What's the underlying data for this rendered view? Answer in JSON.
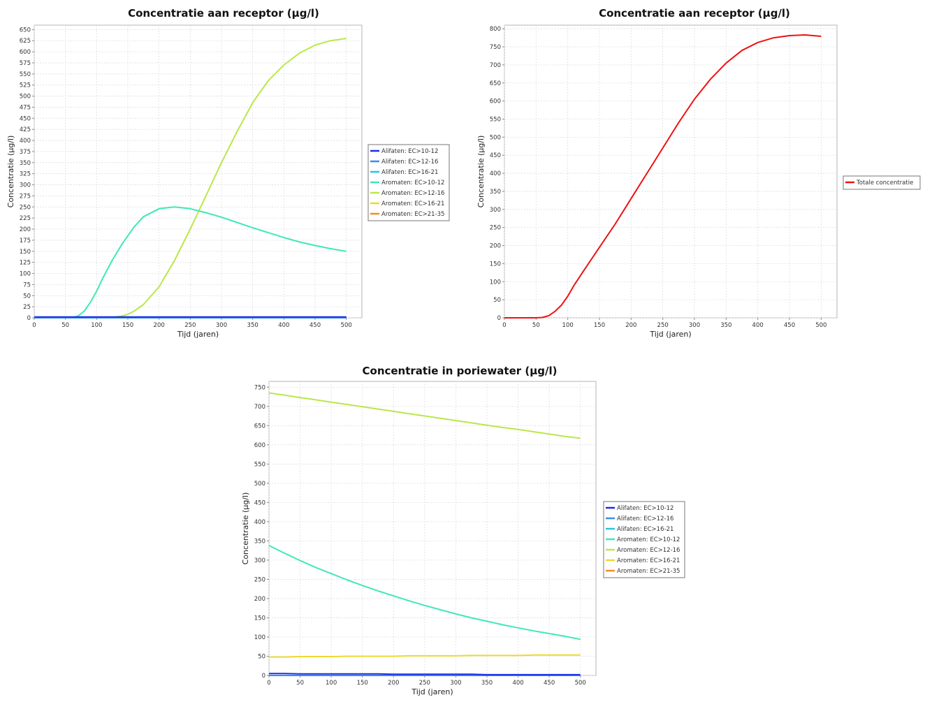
{
  "chart_data": [
    {
      "type": "line",
      "title": "Concentratie aan receptor (µg/l)",
      "xlabel": "Tijd (jaren)",
      "ylabel": "Concentratie (µg/l)",
      "xlim": [
        0,
        525
      ],
      "ylim": [
        0,
        660
      ],
      "xticks": [
        0,
        50,
        100,
        150,
        200,
        250,
        300,
        350,
        400,
        450,
        500
      ],
      "yticks": [
        0,
        25,
        50,
        75,
        100,
        125,
        150,
        175,
        200,
        225,
        250,
        275,
        300,
        325,
        350,
        375,
        400,
        425,
        450,
        475,
        500,
        525,
        550,
        575,
        600,
        625,
        650
      ],
      "grid": true,
      "legend": "right",
      "x": [
        0,
        25,
        50,
        60,
        70,
        80,
        90,
        100,
        110,
        125,
        140,
        150,
        160,
        175,
        200,
        225,
        250,
        275,
        300,
        325,
        350,
        375,
        400,
        425,
        450,
        475,
        500
      ],
      "series": [
        {
          "name": "Alifaten: EC>10-12",
          "color": "#1a2ee0",
          "values": [
            2,
            2,
            2,
            2,
            2,
            2,
            2,
            2,
            2,
            2,
            2,
            2,
            2,
            2,
            2,
            2,
            2,
            2,
            2,
            2,
            2,
            2,
            2,
            2,
            2,
            2,
            2
          ]
        },
        {
          "name": "Alifaten: EC>12-16",
          "color": "#3a8cf0",
          "values": [
            0,
            0,
            0,
            0,
            0,
            0,
            0,
            0,
            0,
            0,
            0,
            0,
            0,
            0,
            0,
            0,
            0,
            0,
            0,
            0,
            0,
            0,
            0,
            0,
            0,
            0,
            0
          ]
        },
        {
          "name": "Alifaten: EC>16-21",
          "color": "#27c4e8",
          "values": [
            0,
            0,
            0,
            0,
            0,
            0,
            0,
            0,
            0,
            0,
            0,
            0,
            0,
            0,
            0,
            0,
            0,
            0,
            0,
            0,
            0,
            0,
            0,
            0,
            0,
            0,
            0
          ]
        },
        {
          "name": "Aromaten: EC>10-12",
          "color": "#3fe8b8",
          "values": [
            0,
            0,
            0,
            0,
            4,
            15,
            35,
            60,
            90,
            130,
            165,
            185,
            205,
            228,
            246,
            250,
            246,
            237,
            227,
            215,
            203,
            192,
            181,
            171,
            163,
            156,
            150
          ]
        },
        {
          "name": "Aromaten: EC>12-16",
          "color": "#b9e84a",
          "values": [
            0,
            0,
            0,
            0,
            0,
            0,
            0,
            0,
            0,
            1,
            4,
            8,
            15,
            30,
            70,
            130,
            200,
            275,
            350,
            420,
            485,
            535,
            570,
            597,
            615,
            625,
            630
          ]
        },
        {
          "name": "Aromaten: EC>16-21",
          "color": "#f0d830",
          "values": [
            0,
            0,
            0,
            0,
            0,
            0,
            0,
            0,
            0,
            0,
            0,
            0,
            0,
            0,
            0,
            0,
            0,
            0,
            0,
            0,
            0,
            0,
            0,
            0,
            0,
            0,
            0
          ]
        },
        {
          "name": "Aromaten: EC>21-35",
          "color": "#f08c2a",
          "values": [
            0,
            0,
            0,
            0,
            0,
            0,
            0,
            0,
            0,
            0,
            0,
            0,
            0,
            0,
            0,
            0,
            0,
            0,
            0,
            0,
            0,
            0,
            0,
            0,
            0,
            0,
            0
          ]
        }
      ]
    },
    {
      "type": "line",
      "title": "Concentratie aan receptor (µg/l)",
      "xlabel": "Tijd (jaren)",
      "ylabel": "Concentratie (µg/l)",
      "xlim": [
        0,
        525
      ],
      "ylim": [
        0,
        810
      ],
      "xticks": [
        0,
        50,
        100,
        150,
        200,
        250,
        300,
        350,
        400,
        450,
        500
      ],
      "yticks": [
        0,
        50,
        100,
        150,
        200,
        250,
        300,
        350,
        400,
        450,
        500,
        550,
        600,
        650,
        700,
        750,
        800
      ],
      "grid": true,
      "legend": "right",
      "x": [
        0,
        25,
        50,
        60,
        70,
        80,
        90,
        100,
        110,
        125,
        150,
        175,
        200,
        225,
        250,
        275,
        300,
        325,
        350,
        375,
        400,
        425,
        450,
        475,
        500
      ],
      "series": [
        {
          "name": "Totale concentratie",
          "color": "#ee1111",
          "values": [
            0,
            0,
            0,
            1,
            6,
            18,
            35,
            60,
            90,
            130,
            195,
            260,
            330,
            400,
            470,
            540,
            605,
            660,
            705,
            740,
            762,
            775,
            781,
            783,
            779
          ]
        }
      ]
    },
    {
      "type": "line",
      "title": "Concentratie in poriewater (µg/l)",
      "xlabel": "Tijd (jaren)",
      "ylabel": "Concentratie (µg/l)",
      "xlim": [
        0,
        525
      ],
      "ylim": [
        0,
        765
      ],
      "xticks": [
        0,
        50,
        100,
        150,
        200,
        250,
        300,
        350,
        400,
        450,
        500
      ],
      "yticks": [
        0,
        50,
        100,
        150,
        200,
        250,
        300,
        350,
        400,
        450,
        500,
        550,
        600,
        650,
        700,
        750
      ],
      "grid": true,
      "legend": "right",
      "x": [
        0,
        25,
        50,
        75,
        100,
        125,
        150,
        175,
        200,
        225,
        250,
        275,
        300,
        325,
        350,
        375,
        400,
        425,
        450,
        475,
        500
      ],
      "series": [
        {
          "name": "Alifaten: EC>10-12",
          "color": "#1a2ee0",
          "values": [
            5,
            5,
            4,
            4,
            4,
            4,
            4,
            4,
            3,
            3,
            3,
            3,
            3,
            3,
            2,
            2,
            2,
            2,
            2,
            2,
            2
          ]
        },
        {
          "name": "Alifaten: EC>12-16",
          "color": "#3a8cf0",
          "values": [
            0,
            0,
            0,
            0,
            0,
            0,
            0,
            0,
            0,
            0,
            0,
            0,
            0,
            0,
            0,
            0,
            0,
            0,
            0,
            0,
            0
          ]
        },
        {
          "name": "Alifaten: EC>16-21",
          "color": "#27c4e8",
          "values": [
            0,
            0,
            0,
            0,
            0,
            0,
            0,
            0,
            0,
            0,
            0,
            0,
            0,
            0,
            0,
            0,
            0,
            0,
            0,
            0,
            0
          ]
        },
        {
          "name": "Aromaten: EC>10-12",
          "color": "#3fe8b8",
          "values": [
            338,
            318,
            299,
            281,
            265,
            249,
            234,
            220,
            207,
            194,
            182,
            171,
            160,
            150,
            141,
            132,
            124,
            116,
            109,
            102,
            94
          ]
        },
        {
          "name": "Aromaten: EC>12-16",
          "color": "#b9e84a",
          "values": [
            735,
            729,
            723,
            717,
            711,
            705,
            699,
            693,
            687,
            681,
            675,
            669,
            663,
            657,
            651,
            645,
            640,
            634,
            628,
            622,
            617
          ]
        },
        {
          "name": "Aromaten: EC>16-21",
          "color": "#f0d830",
          "values": [
            48,
            48,
            49,
            49,
            49,
            50,
            50,
            50,
            50,
            51,
            51,
            51,
            51,
            52,
            52,
            52,
            52,
            53,
            53,
            53,
            53
          ]
        },
        {
          "name": "Aromaten: EC>21-35",
          "color": "#f08c2a",
          "values": [
            0,
            0,
            0,
            0,
            0,
            0,
            0,
            0,
            0,
            0,
            0,
            0,
            0,
            0,
            0,
            0,
            0,
            0,
            0,
            0,
            0
          ]
        }
      ]
    }
  ]
}
